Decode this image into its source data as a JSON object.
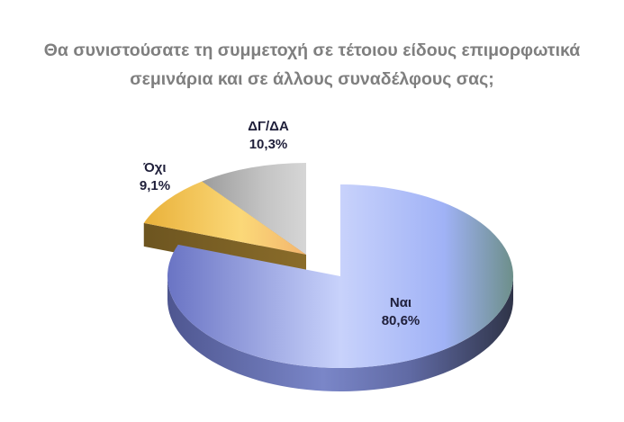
{
  "chart_data": {
    "type": "pie",
    "title_line1": "Θα συνιστούσατε τη συμμετοχή σε τέτοιου είδους επιμορφωτικά",
    "title_line2": "σεμινάρια και σε άλλους συναδέλφους σας;",
    "slices": [
      {
        "category": "Ναι",
        "value": 80.6,
        "value_label": "80,6%",
        "color": "#9aa6f0",
        "exploded": false
      },
      {
        "category": "Όχι",
        "value": 9.1,
        "value_label": "9,1%",
        "color": "#f8c85a",
        "exploded": true
      },
      {
        "category": "ΔΓ/ΔΑ",
        "value": 10.3,
        "value_label": "10,3%",
        "color": "#b8b8b8",
        "exploded": true
      }
    ],
    "style": "3d-exploded"
  }
}
